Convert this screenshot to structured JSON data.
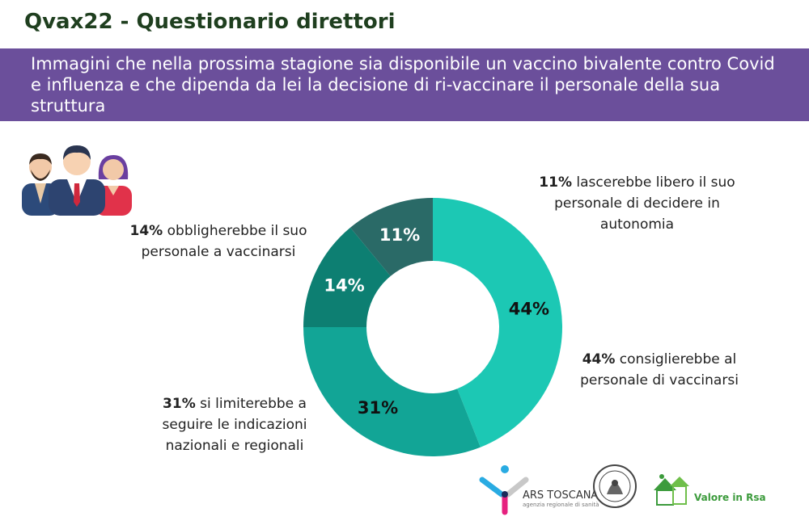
{
  "header": {
    "title": "Qvax22 - Questionario direttori",
    "question": "Immagini che nella prossima stagione sia disponibile un vaccino bivalente contro Covid e influenza e che dipenda da lei la decisione di ri-vaccinare il personale della sua struttura"
  },
  "labels": {
    "l11": {
      "pct": "11%",
      "text": " lascerebbe libero il suo personale di decidere in autonomia"
    },
    "l14": {
      "pct": "14%",
      "text": " obbligherebbe il suo personale a vaccinarsi"
    },
    "l44": {
      "pct": "44%",
      "text": " consiglierebbe al personale di vaccinarsi"
    },
    "l31": {
      "pct": "31%",
      "text": " si limiterebbe a seguire le indicazioni nazionali e regionali"
    }
  },
  "chart_data": {
    "type": "pie",
    "donut": true,
    "start": "top",
    "direction": "clockwise",
    "slices": [
      {
        "value": 44,
        "label": "44%",
        "color": "#1cc8b4",
        "text_color": "#111111"
      },
      {
        "value": 31,
        "label": "31%",
        "color": "#12a596",
        "text_color": "#111111"
      },
      {
        "value": 14,
        "label": "14%",
        "color": "#0d7f72",
        "text_color": "#ffffff"
      },
      {
        "value": 11,
        "label": "11%",
        "color": "#2a6a67",
        "text_color": "#ffffff"
      }
    ]
  },
  "logos": {
    "ars_name": "ARS TOSCANA",
    "ars_sub": "agenzia regionale di sanità",
    "valore": "Valore in Rsa"
  },
  "colors": {
    "banner": "#6b4f9b",
    "title": "#1f3f1f",
    "valore_green": "#3c9b3c"
  }
}
